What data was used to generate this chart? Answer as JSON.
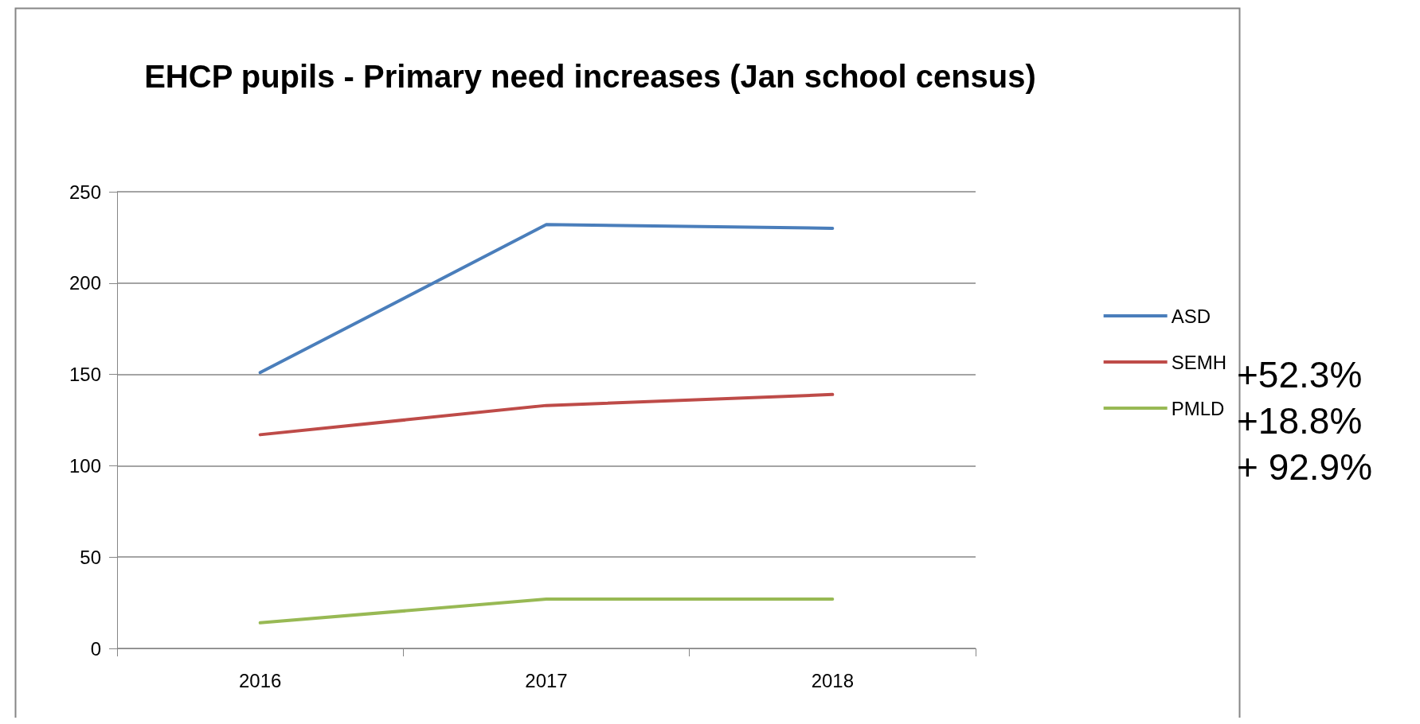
{
  "chart_data": {
    "type": "line",
    "title": "EHCP pupils - Primary need increases (Jan school census)",
    "categories": [
      "2016",
      "2017",
      "2018"
    ],
    "series": [
      {
        "name": "ASD",
        "color": "#4a7ebb",
        "values": [
          151,
          232,
          230
        ]
      },
      {
        "name": "SEMH",
        "color": "#be4b48",
        "values": [
          117,
          133,
          139
        ]
      },
      {
        "name": "PMLD",
        "color": "#98b954",
        "values": [
          14,
          27,
          27
        ]
      }
    ],
    "ylim": [
      0,
      250
    ],
    "yticks": [
      0,
      50,
      100,
      150,
      200,
      250
    ],
    "grid": "y",
    "legend": "right",
    "marker": "none",
    "line_style": "solid",
    "annotations": [
      "+52.3%",
      "+18.8%",
      "+ 92.9%"
    ]
  }
}
